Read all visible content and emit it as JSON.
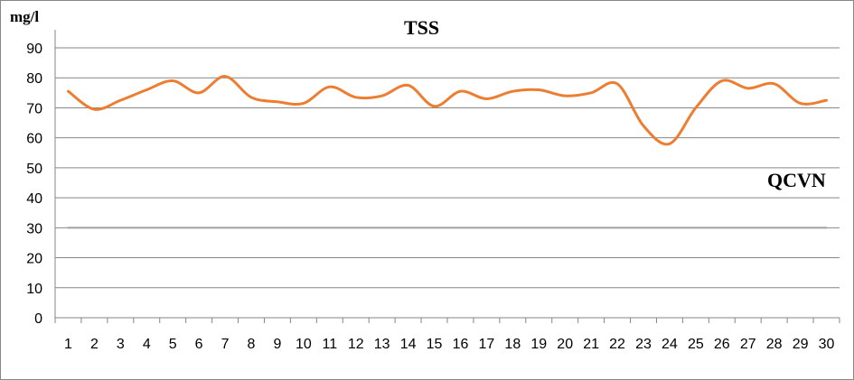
{
  "chart_data": {
    "type": "line",
    "title": "TSS",
    "ylabel": "mg/l",
    "xlabel": "",
    "categories": [
      "1",
      "2",
      "3",
      "4",
      "5",
      "6",
      "7",
      "8",
      "9",
      "10",
      "11",
      "12",
      "13",
      "14",
      "15",
      "16",
      "17",
      "18",
      "19",
      "20",
      "21",
      "22",
      "23",
      "24",
      "25",
      "26",
      "27",
      "28",
      "29",
      "30"
    ],
    "ylim": [
      0,
      90
    ],
    "yticks": [
      0,
      10,
      20,
      30,
      40,
      50,
      60,
      70,
      80,
      90
    ],
    "grid": true,
    "series": [
      {
        "values": [
          75.5,
          69.5,
          72.5,
          76,
          79,
          75,
          80.5,
          73.5,
          72,
          71.5,
          77,
          73.5,
          74,
          77.5,
          70.5,
          75.5,
          73,
          75.5,
          76,
          74,
          75,
          78,
          64,
          58,
          70,
          79,
          76.5,
          78,
          71.5,
          72.5
        ],
        "color": "#ED7D31",
        "smooth": true
      },
      {
        "name": "QCVN",
        "values": [
          30,
          30,
          30,
          30,
          30,
          30,
          30,
          30,
          30,
          30,
          30,
          30,
          30,
          30,
          30,
          30,
          30,
          30,
          30,
          30,
          30,
          30,
          30,
          30,
          30,
          30,
          30,
          30,
          30,
          30
        ],
        "color": "#A5A5A5"
      }
    ],
    "annotations": [
      "QCVN"
    ]
  }
}
